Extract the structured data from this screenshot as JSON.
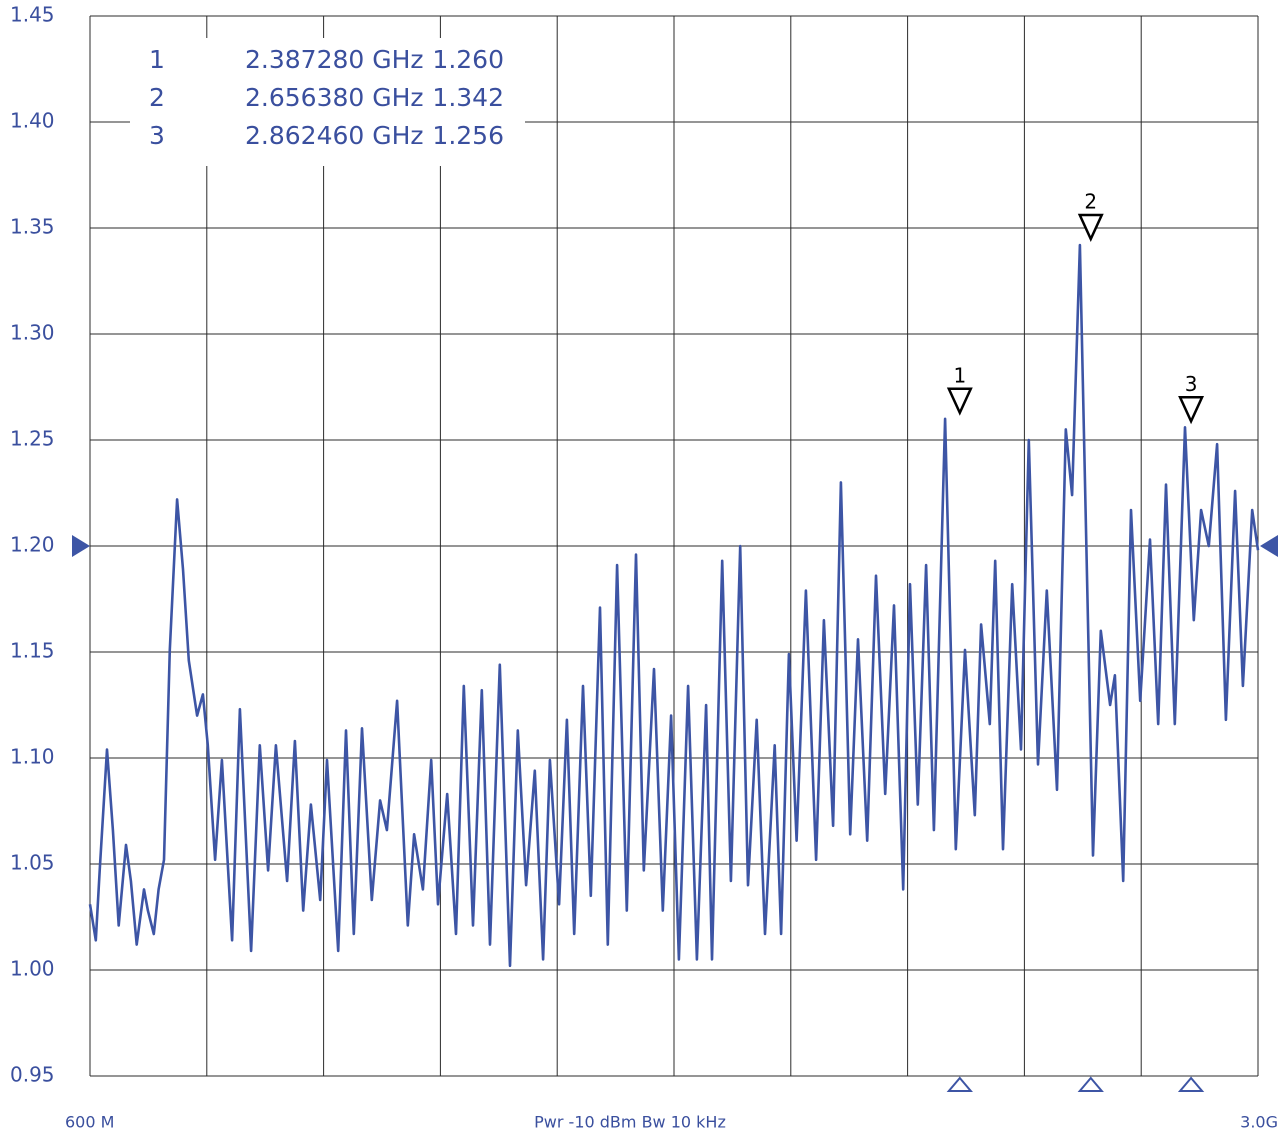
{
  "chart_data": {
    "type": "line",
    "xlim": [
      0.6,
      3.0
    ],
    "ylim": [
      0.95,
      1.45
    ],
    "xticks": [
      {
        "value": 0.6,
        "label": "600 M"
      },
      {
        "value": 3.0,
        "label": "3.0G"
      }
    ],
    "xgrid": [
      0.84,
      1.08,
      1.32,
      1.56,
      1.8,
      2.04,
      2.28,
      2.52,
      2.76
    ],
    "yticks": [
      1.45,
      {
        "value": 1.4,
        "label": "1.40"
      },
      1.35,
      {
        "value": 1.3,
        "label": "1.30"
      },
      1.25,
      {
        "value": 1.2,
        "label": "1.20"
      },
      1.15,
      {
        "value": 1.1,
        "label": "1.10"
      },
      1.05,
      {
        "value": 1.0,
        "label": "1.00"
      },
      0.95
    ],
    "grid": true,
    "footer": "Pwr -10 dBm Bw 10 kHz",
    "reference_level": 1.2,
    "series": [
      {
        "color": "#3d55a5",
        "x": [
          0.6,
          0.612,
          0.62,
          0.635,
          0.647,
          0.659,
          0.674,
          0.684,
          0.696,
          0.711,
          0.719,
          0.731,
          0.741,
          0.752,
          0.764,
          0.779,
          0.791,
          0.803,
          0.82,
          0.832,
          0.842,
          0.857,
          0.871,
          0.892,
          0.908,
          0.931,
          0.949,
          0.966,
          0.982,
          1.005,
          1.021,
          1.038,
          1.054,
          1.073,
          1.087,
          1.11,
          1.126,
          1.142,
          1.159,
          1.179,
          1.196,
          1.21,
          1.231,
          1.253,
          1.266,
          1.284,
          1.301,
          1.315,
          1.334,
          1.352,
          1.368,
          1.387,
          1.405,
          1.422,
          1.442,
          1.463,
          1.479,
          1.496,
          1.514,
          1.531,
          1.545,
          1.564,
          1.58,
          1.595,
          1.613,
          1.629,
          1.648,
          1.664,
          1.683,
          1.703,
          1.722,
          1.738,
          1.759,
          1.777,
          1.794,
          1.81,
          1.829,
          1.847,
          1.866,
          1.878,
          1.899,
          1.917,
          1.936,
          1.952,
          1.97,
          1.987,
          2.007,
          2.02,
          2.036,
          2.052,
          2.071,
          2.092,
          2.108,
          2.127,
          2.143,
          2.162,
          2.178,
          2.197,
          2.215,
          2.234,
          2.252,
          2.271,
          2.285,
          2.301,
          2.318,
          2.334,
          2.357,
          2.379,
          2.398,
          2.418,
          2.431,
          2.449,
          2.46,
          2.476,
          2.495,
          2.513,
          2.529,
          2.548,
          2.566,
          2.587,
          2.605,
          2.618,
          2.634,
          2.661,
          2.677,
          2.696,
          2.706,
          2.723,
          2.739,
          2.758,
          2.778,
          2.795,
          2.811,
          2.829,
          2.85,
          2.868,
          2.883,
          2.899,
          2.916,
          2.934,
          2.953,
          2.969,
          2.988,
          3.0
        ],
        "values": [
          1.031,
          1.014,
          1.047,
          1.104,
          1.066,
          1.021,
          1.059,
          1.042,
          1.012,
          1.038,
          1.028,
          1.017,
          1.038,
          1.052,
          1.151,
          1.222,
          1.189,
          1.146,
          1.12,
          1.13,
          1.106,
          1.052,
          1.099,
          1.014,
          1.123,
          1.009,
          1.106,
          1.047,
          1.106,
          1.042,
          1.108,
          1.028,
          1.078,
          1.033,
          1.099,
          1.009,
          1.113,
          1.017,
          1.114,
          1.033,
          1.08,
          1.066,
          1.127,
          1.021,
          1.064,
          1.038,
          1.099,
          1.031,
          1.083,
          1.017,
          1.134,
          1.021,
          1.132,
          1.012,
          1.144,
          1.002,
          1.113,
          1.04,
          1.094,
          1.005,
          1.099,
          1.031,
          1.118,
          1.017,
          1.134,
          1.035,
          1.171,
          1.012,
          1.191,
          1.028,
          1.196,
          1.047,
          1.142,
          1.028,
          1.12,
          1.005,
          1.134,
          1.005,
          1.125,
          1.005,
          1.193,
          1.042,
          1.2,
          1.04,
          1.118,
          1.017,
          1.106,
          1.017,
          1.149,
          1.061,
          1.179,
          1.052,
          1.165,
          1.068,
          1.23,
          1.064,
          1.156,
          1.061,
          1.186,
          1.083,
          1.172,
          1.038,
          1.182,
          1.078,
          1.191,
          1.066,
          1.26,
          1.057,
          1.151,
          1.073,
          1.163,
          1.116,
          1.193,
          1.057,
          1.182,
          1.104,
          1.25,
          1.097,
          1.179,
          1.085,
          1.255,
          1.224,
          1.342,
          1.054,
          1.16,
          1.125,
          1.139,
          1.042,
          1.217,
          1.127,
          1.203,
          1.116,
          1.229,
          1.116,
          1.256,
          1.165,
          1.217,
          1.2,
          1.248,
          1.118,
          1.226,
          1.134,
          1.217,
          1.198
        ]
      }
    ],
    "markers": {
      "labels": [
        "1",
        "2",
        "3"
      ],
      "x": [
        2.38728,
        2.65638,
        2.86246
      ],
      "x_labels": [
        "2.387280 GHz",
        "2.656380 GHz",
        "2.862460 GHz"
      ],
      "values": [
        1.26,
        1.342,
        1.256
      ],
      "value_labels": [
        "1.260",
        "1.342",
        "1.256"
      ]
    }
  }
}
